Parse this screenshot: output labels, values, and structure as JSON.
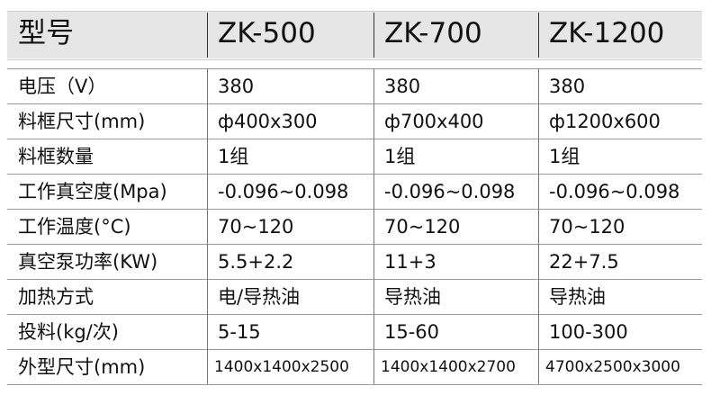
{
  "table": {
    "header": [
      "型号",
      "ZK-500",
      "ZK-700",
      "ZK-1200"
    ],
    "rows": [
      [
        "电压（V）",
        "380",
        "380",
        "380"
      ],
      [
        "料框尺寸(mm)",
        "ф400x300",
        "ф700x400",
        "ф1200x600"
      ],
      [
        "料框数量",
        "1组",
        "1组",
        "1组"
      ],
      [
        "工作真空度(Mpa)",
        "-0.096~0.098",
        "-0.096~0.098",
        "-0.096~0.098"
      ],
      [
        "工作温度(°C)",
        "70~120",
        "70~120",
        "70~120"
      ],
      [
        "真空泵功率(KW)",
        "5.5+2.2",
        "11+3",
        "22+7.5"
      ],
      [
        "加热方式",
        "电/导热油",
        "导热油",
        "导热油"
      ],
      [
        "投料(kg/次)",
        "5-15",
        "15-60",
        "100-300"
      ],
      [
        "外型尺寸(mm)",
        "1400x1400x2500",
        "1400x1400x2700",
        "4700x2500x3000"
      ]
    ]
  }
}
